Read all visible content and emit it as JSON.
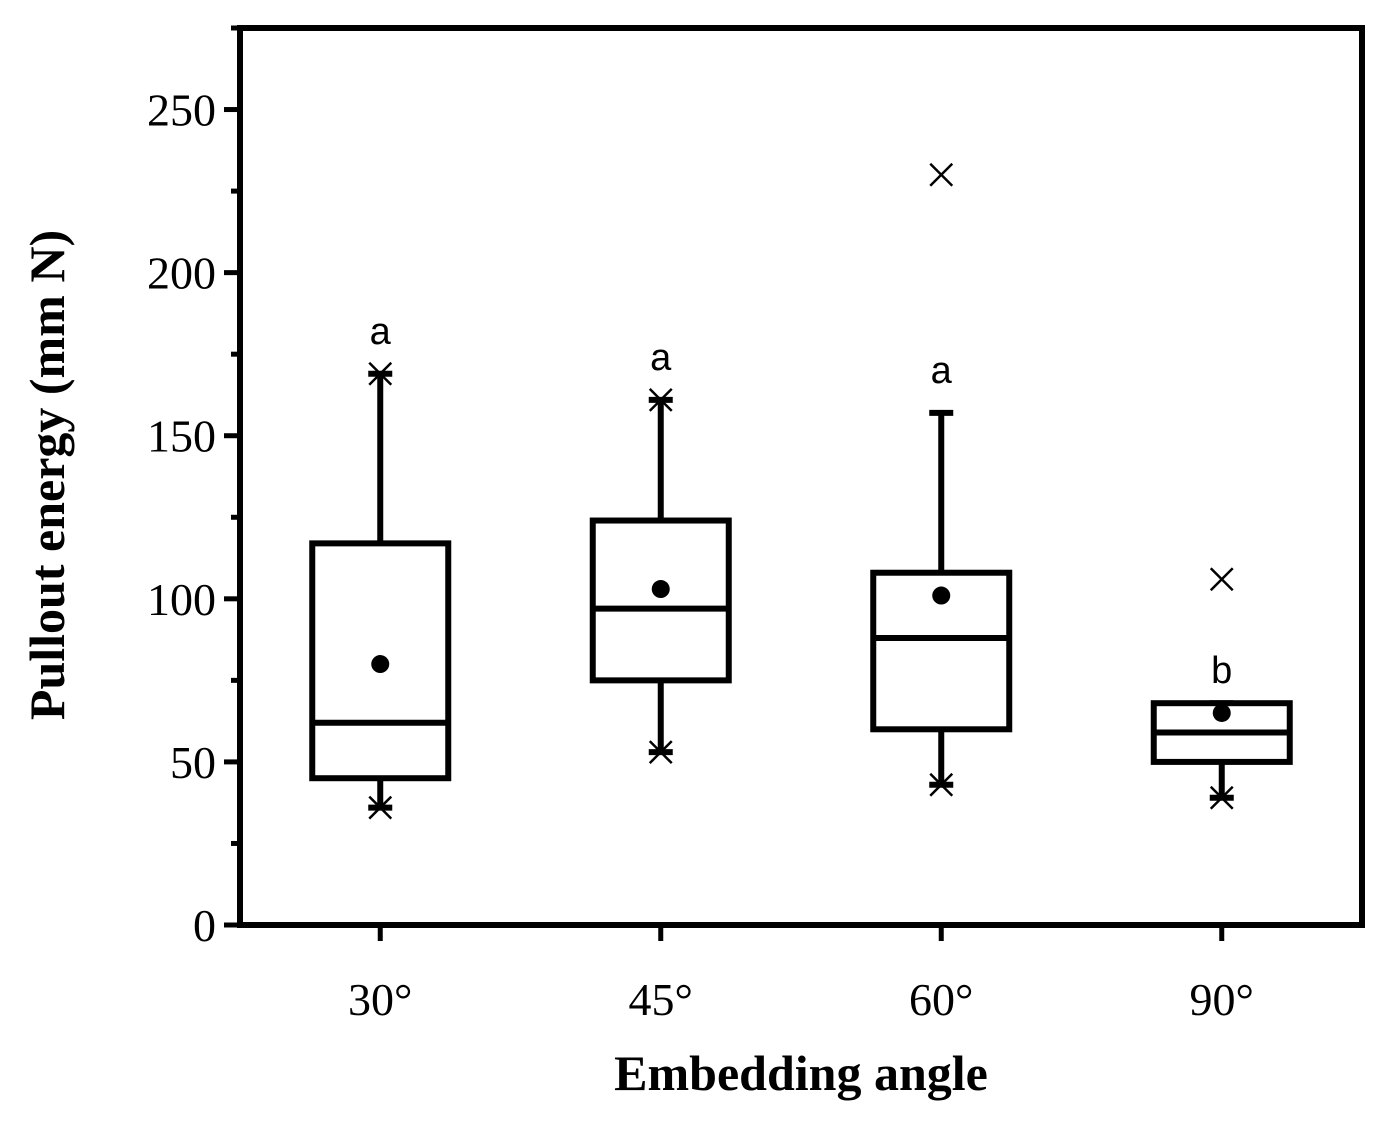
{
  "chart_data": {
    "type": "box",
    "title": "",
    "xlabel": "Embedding angle",
    "ylabel": "Pullout energy (mm N)",
    "ylim": [
      0,
      275
    ],
    "yticks": [
      0,
      50,
      100,
      150,
      200,
      250
    ],
    "ytick_labels": [
      "0",
      "50",
      "100",
      "150",
      "200",
      "250"
    ],
    "y_minor_step": 25,
    "categories": [
      "30°",
      "45°",
      "60°",
      "90°"
    ],
    "boxes": [
      {
        "category": "30°",
        "q1": 45,
        "median": 62,
        "q3": 117,
        "whisker_low": 36,
        "whisker_high": 169,
        "mean": 80,
        "min_marker": 36,
        "max_marker": 169,
        "outliers": [],
        "group_label": "a"
      },
      {
        "category": "45°",
        "q1": 75,
        "median": 97,
        "q3": 124,
        "whisker_low": 53,
        "whisker_high": 161,
        "mean": 103,
        "min_marker": 53,
        "max_marker": 161,
        "outliers": [],
        "group_label": "a"
      },
      {
        "category": "60°",
        "q1": 60,
        "median": 88,
        "q3": 108,
        "whisker_low": 43,
        "whisker_high": 157,
        "mean": 101,
        "min_marker": 43,
        "max_marker": null,
        "outliers": [
          230
        ],
        "group_label": "a"
      },
      {
        "category": "90°",
        "q1": 50,
        "median": 59,
        "q3": 68,
        "whisker_low": 39,
        "whisker_high": 68,
        "mean": 65,
        "min_marker": 39,
        "max_marker": null,
        "outliers": [
          106
        ],
        "group_label": "b"
      }
    ]
  }
}
